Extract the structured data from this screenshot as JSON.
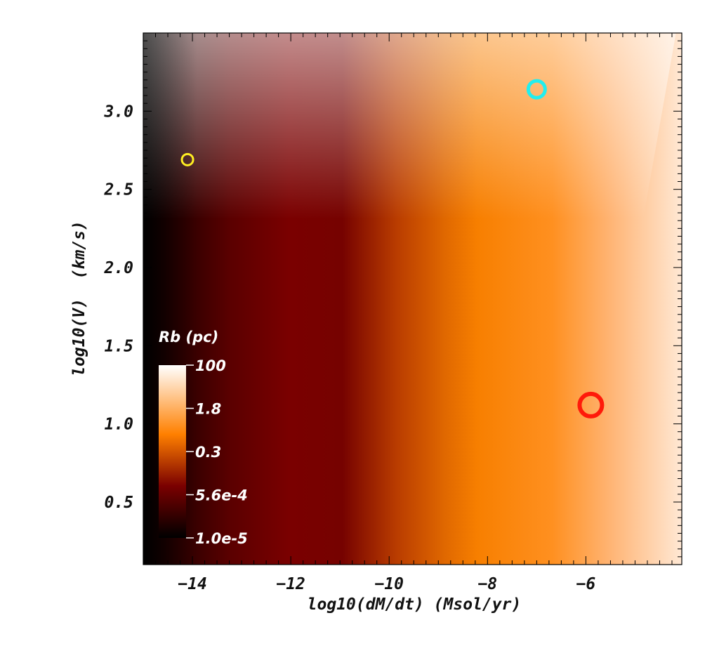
{
  "chart_data": {
    "type": "heatmap",
    "xlabel": "log10(dM/dt) (Msol/yr)",
    "ylabel": "log10(V)  (km/s)",
    "xlim": [
      -15,
      -4.05
    ],
    "ylim": [
      0.1,
      3.5
    ],
    "x_ticks": [
      -14,
      -12,
      -10,
      -8,
      -6
    ],
    "x_tick_labels": [
      "−14",
      "−12",
      "−10",
      "−8",
      "−6"
    ],
    "y_ticks": [
      0.5,
      1.0,
      1.5,
      2.0,
      2.5,
      3.0
    ],
    "y_tick_labels": [
      "0.5",
      "1.0",
      "1.5",
      "2.0",
      "2.5",
      "3.0"
    ],
    "colormap": "hot-afmhot",
    "colormap_stops": [
      "#000000",
      "#7a0000",
      "#ff8000",
      "#ffffff"
    ],
    "colorbar": {
      "title": "Rb (pc)",
      "tick_labels": [
        "100",
        "1.8",
        "0.3",
        "5.6e-4",
        "1.0e-5"
      ],
      "placement": "lower-left inside plot"
    },
    "markers": [
      {
        "name": "yellow",
        "x": -14.1,
        "y": 2.69,
        "color": "#ffee22",
        "size": "small"
      },
      {
        "name": "cyan",
        "x": -7.0,
        "y": 3.14,
        "color": "#22eeee",
        "size": "medium"
      },
      {
        "name": "red",
        "x": -5.9,
        "y": 1.12,
        "color": "#ff1a0a",
        "size": "large"
      }
    ],
    "grid": false
  }
}
